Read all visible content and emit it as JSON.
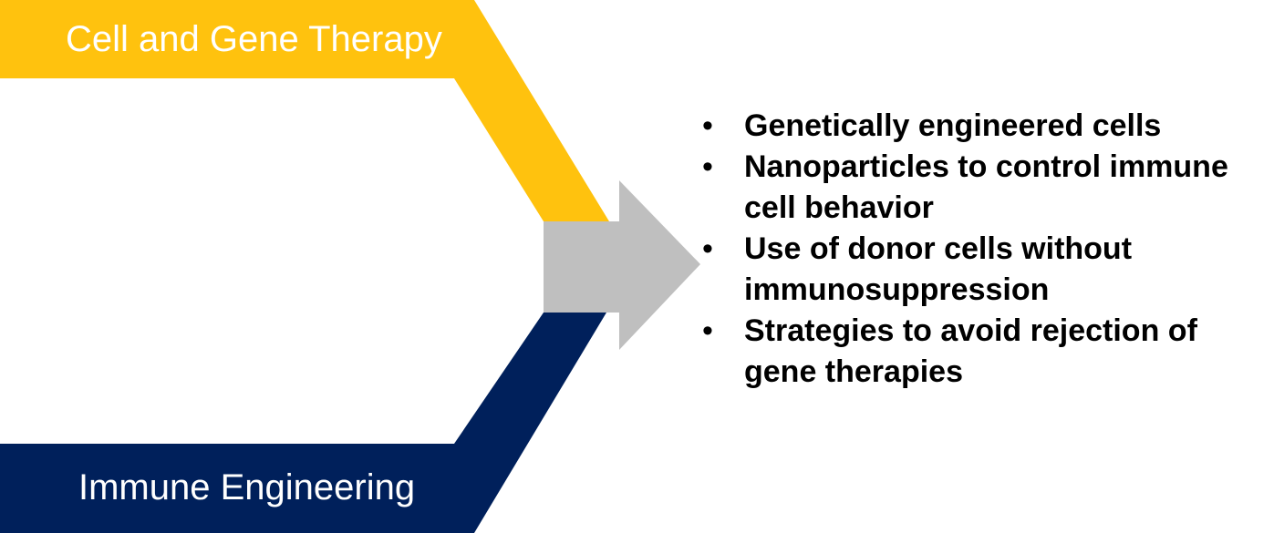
{
  "diagram": {
    "top_band": {
      "label": "Cell and Gene Therapy",
      "color": "#FFC20E"
    },
    "bottom_band": {
      "label": "Immune Engineering",
      "color": "#00205B"
    },
    "arrow": {
      "color": "#BFBFBF"
    },
    "bullet_symbol": "•",
    "bullets": [
      "Genetically engineered cells",
      "Nanoparticles to control immune cell behavior",
      "Use of donor cells without immunosuppression",
      "Strategies to avoid rejection of gene therapies"
    ]
  }
}
